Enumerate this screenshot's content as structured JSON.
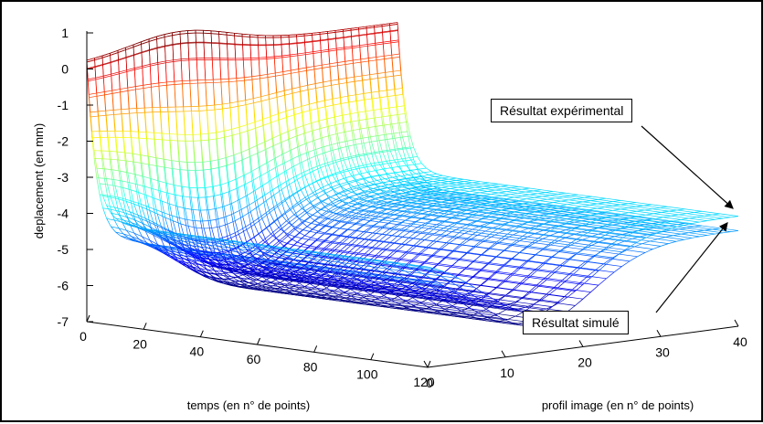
{
  "chart_data": {
    "type": "surface3d",
    "zlabel": "deplacement (en mm)",
    "xlabel": "temps (en n° de points)",
    "ylabel": "profil image (en n° de points)",
    "zticks": [
      "1",
      "0",
      "-1",
      "-2",
      "-3",
      "-4",
      "-5",
      "-6",
      "-7"
    ],
    "xticks": [
      "0",
      "20",
      "40",
      "60",
      "80",
      "100",
      "120"
    ],
    "yticks": [
      "0",
      "10",
      "20",
      "30",
      "40"
    ],
    "zlim": [
      -7,
      1
    ],
    "xlim": [
      0,
      120
    ],
    "ylim": [
      0,
      40
    ],
    "colormap": "jet",
    "series": [
      {
        "name": "Résultat expérimental"
      },
      {
        "name": "Résultat simulé"
      }
    ]
  },
  "annotations": [
    {
      "text": "Résultat expérimental"
    },
    {
      "text": "Résultat simulé"
    }
  ]
}
